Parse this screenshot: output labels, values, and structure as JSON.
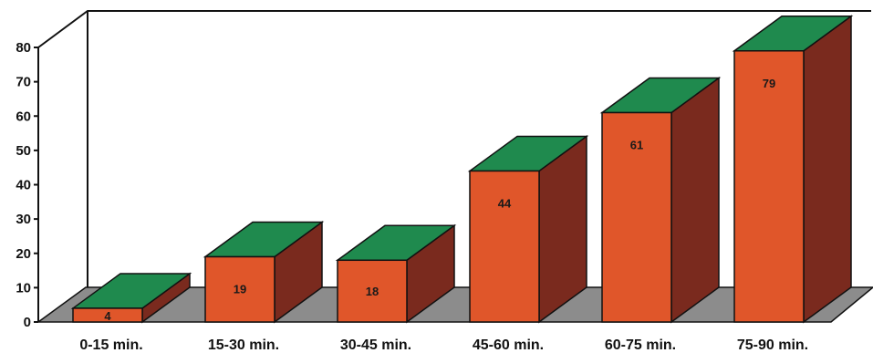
{
  "chart_data": {
    "type": "bar",
    "style": "3d-column",
    "categories": [
      "0-15 min.",
      "15-30 min.",
      "30-45 min.",
      "45-60 min.",
      "60-75 min.",
      "75-90 min."
    ],
    "values": [
      4,
      19,
      18,
      44,
      61,
      79
    ],
    "data_labels": [
      "4",
      "19",
      "18",
      "44",
      "61",
      "79"
    ],
    "title": "",
    "xlabel": "",
    "ylabel": "",
    "ylim": [
      0,
      80
    ],
    "yticks": [
      0,
      10,
      20,
      30,
      40,
      50,
      60,
      70,
      80
    ],
    "grid": false,
    "legend": "none",
    "colors": {
      "front": "#e0562a",
      "side": "#7a2a1e",
      "top": "#1f8a4e",
      "floor": "#8c8c8c",
      "outline": "#111111"
    }
  }
}
